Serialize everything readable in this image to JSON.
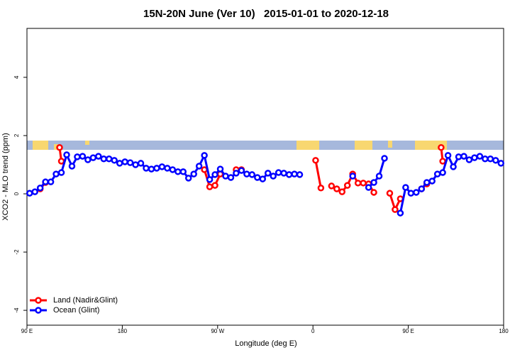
{
  "chart_data": {
    "type": "line",
    "title": "15N-20N June (Ver 10)   2015-01-01 to 2020-12-18",
    "x_label": "Longitude (deg E)",
    "y_label": "XCO2 - MLO trend (ppm)",
    "xlim": [
      90,
      540
    ],
    "ylim": [
      -4.51,
      5.68
    ],
    "xticks": [
      {
        "value": 90,
        "label": "90 E"
      },
      180,
      {
        "value": 270,
        "label": "90 W"
      },
      {
        "value": 360,
        "label": "0"
      },
      {
        "value": 450,
        "label": "90 E"
      },
      {
        "value": 540,
        "label": "180"
      }
    ],
    "yticks": [
      -4,
      -2,
      0,
      2,
      4
    ],
    "legend": "bottom-left",
    "series": [
      {
        "name": "Land (Nadir&Glint)",
        "color": "#ff0000",
        "x": [
          102.5,
          107.5,
          null,
          120.8,
          122.5,
          null,
          257.5,
          262.5,
          267.5,
          272.5,
          null,
          287.5,
          292.5,
          null,
          362.5,
          367.5,
          null,
          377.5,
          382.5,
          387.5,
          392.5,
          397.5,
          402.5,
          407.5,
          412.5,
          417.5,
          null,
          432.5,
          437.5,
          442.5,
          null,
          462.5,
          467.5,
          null,
          481,
          482.5
        ],
        "values": [
          0.17,
          0.39,
          null,
          1.59,
          1.12,
          null,
          0.83,
          0.24,
          0.29,
          0.68,
          null,
          0.83,
          0.83,
          null,
          1.15,
          0.2,
          null,
          0.27,
          0.17,
          0.07,
          0.29,
          0.68,
          0.37,
          0.37,
          0.34,
          0.05,
          null,
          0.02,
          -0.54,
          -0.17,
          null,
          0.17,
          0.34,
          null,
          1.59,
          1.12
        ]
      },
      {
        "name": "Ocean (Glint)",
        "color": "#0000ff",
        "x": [
          92.5,
          97.5,
          102.5,
          107.5,
          112.5,
          117.5,
          122.5,
          127.5,
          132.5,
          137.5,
          142.5,
          147.5,
          152.5,
          157.5,
          162.5,
          167.5,
          172.5,
          177.5,
          182.5,
          187.5,
          192.5,
          197.5,
          202.5,
          207.5,
          212.5,
          217.5,
          222.5,
          227.5,
          232.5,
          237.5,
          242.5,
          247.5,
          252.5,
          257.5,
          262.5,
          267.5,
          272.5,
          277.5,
          282.5,
          287.5,
          292.5,
          297.5,
          302.5,
          307.5,
          312.5,
          317.5,
          322.5,
          327.5,
          332.5,
          337.5,
          342.5,
          347.5,
          null,
          397.5,
          null,
          412.5,
          417.5,
          422.5,
          427.5,
          null,
          442.5,
          447.5,
          452.5,
          457.5,
          462.5,
          467.5,
          472.5,
          477.5,
          482.5,
          487.5,
          492.5,
          497.5,
          502.5,
          507.5,
          512.5,
          517.5,
          522.5,
          527.5,
          532.5,
          537.5
        ],
        "values": [
          0.02,
          0.07,
          0.2,
          0.41,
          0.41,
          0.68,
          0.73,
          1.34,
          0.95,
          1.27,
          1.29,
          1.17,
          1.24,
          1.29,
          1.2,
          1.2,
          1.15,
          1.05,
          1.1,
          1.07,
          1.0,
          1.05,
          0.88,
          0.85,
          0.88,
          0.93,
          0.88,
          0.83,
          0.76,
          0.76,
          0.54,
          0.68,
          0.95,
          1.32,
          0.49,
          0.66,
          0.85,
          0.61,
          0.56,
          0.71,
          0.8,
          0.68,
          0.66,
          0.56,
          0.51,
          0.71,
          0.61,
          0.73,
          0.71,
          0.66,
          0.68,
          0.66,
          null,
          0.61,
          null,
          0.22,
          0.39,
          0.61,
          1.22,
          null,
          -0.66,
          0.22,
          0.02,
          0.05,
          0.17,
          0.39,
          0.44,
          0.68,
          0.73,
          1.32,
          0.93,
          1.27,
          1.29,
          1.17,
          1.24,
          1.29,
          1.2,
          1.2,
          1.15,
          1.05
        ]
      }
    ]
  }
}
